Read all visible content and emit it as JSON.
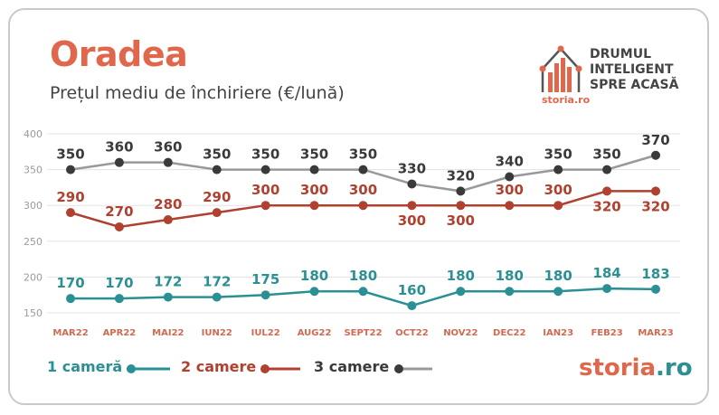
{
  "header": {
    "title": "Oradea",
    "subtitle": "Prețul mediu de închiriere (€/lună)"
  },
  "logo": {
    "line1": "DRUMUL",
    "line2": "INTELIGENT",
    "line3": "SPRE ACASĂ",
    "small_brand": "storia.ro"
  },
  "brand": {
    "part1": "storia",
    "part2": ".ro"
  },
  "colors": {
    "orange": "#e0664c",
    "teal": "#2b9094",
    "red": "#b0402f",
    "gray": "#999999",
    "dark": "#3a3a3a"
  },
  "chart_data": {
    "type": "line",
    "categories": [
      "MAR22",
      "APR22",
      "MAI22",
      "IUN22",
      "IUL22",
      "AUG22",
      "SEPT22",
      "OCT22",
      "NOV22",
      "DEC22",
      "IAN23",
      "FEB23",
      "MAR23"
    ],
    "y_ticks": [
      400,
      350,
      300,
      250,
      200,
      150
    ],
    "ylim": [
      150,
      400
    ],
    "series": [
      {
        "name": "1 cameră",
        "color": "#2b9094",
        "values": [
          170,
          170,
          172,
          172,
          175,
          180,
          180,
          160,
          180,
          180,
          180,
          184,
          183
        ]
      },
      {
        "name": "2 camere",
        "color": "#b0402f",
        "values": [
          290,
          270,
          280,
          290,
          300,
          300,
          300,
          300,
          300,
          300,
          300,
          320,
          320
        ]
      },
      {
        "name": "3 camere",
        "color": "#999999",
        "values": [
          350,
          360,
          360,
          350,
          350,
          350,
          350,
          330,
          320,
          340,
          350,
          350,
          370
        ]
      }
    ],
    "legend_position": "bottom-left",
    "grid": true
  }
}
